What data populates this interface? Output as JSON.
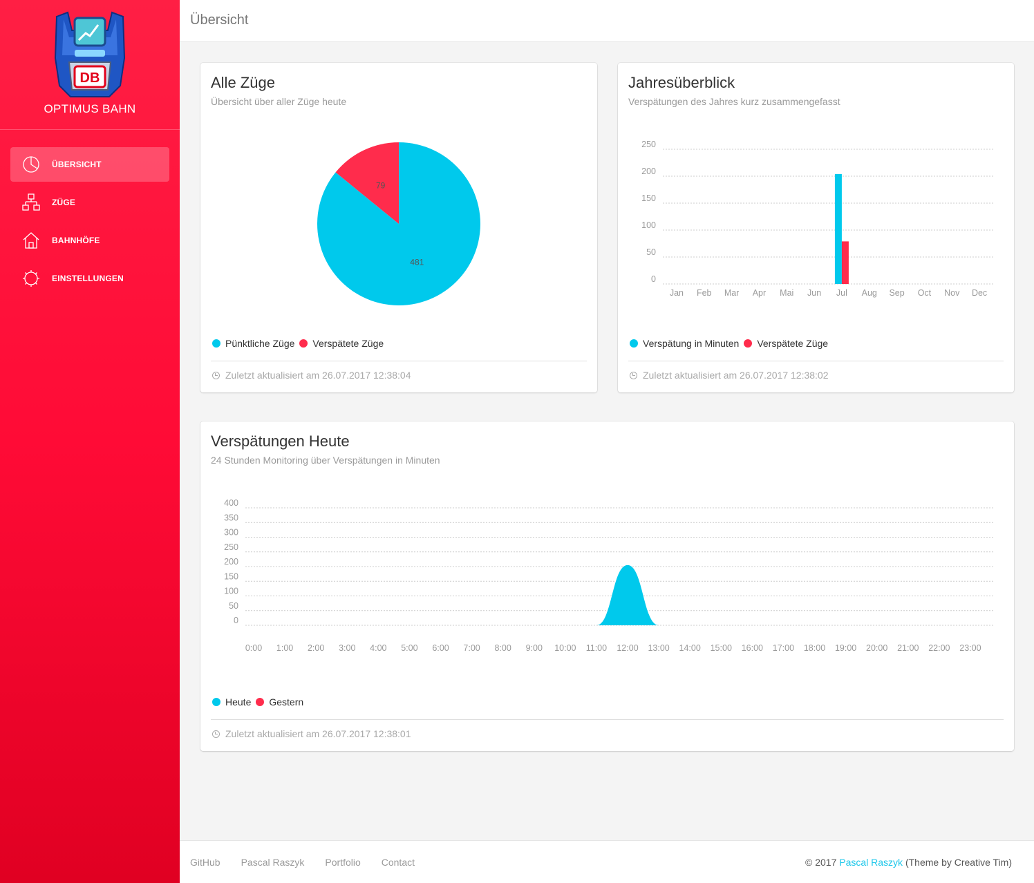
{
  "brand": {
    "name": "OPTIMUS BAHN",
    "logo_text": "DB"
  },
  "sidebar": {
    "items": [
      {
        "label": "ÜBERSICHT",
        "icon": "pie-chart-icon",
        "active": true
      },
      {
        "label": "ZÜGE",
        "icon": "hierarchy-icon",
        "active": false
      },
      {
        "label": "BAHNHÖFE",
        "icon": "home-icon",
        "active": false
      },
      {
        "label": "EINSTELLUNGEN",
        "icon": "gear-icon",
        "active": false
      }
    ]
  },
  "header": {
    "title": "Übersicht"
  },
  "cards": {
    "all_trains": {
      "title": "Alle Züge",
      "subtitle": "Übersicht über aller Züge heute",
      "legend": [
        "Pünktliche Züge",
        "Verspätete Züge"
      ],
      "updated": "Zuletzt aktualisiert am 26.07.2017 12:38:04"
    },
    "year": {
      "title": "Jahresüberblick",
      "subtitle": "Verspätungen des Jahres kurz zusammengefasst",
      "legend": [
        "Verspätung in Minuten",
        "Verspätete Züge"
      ],
      "updated": "Zuletzt aktualisiert am 26.07.2017 12:38:02"
    },
    "today": {
      "title": "Verspätungen Heute",
      "subtitle": "24 Stunden Monitoring über Verspätungen in Minuten",
      "legend": [
        "Heute",
        "Gestern"
      ],
      "updated": "Zuletzt aktualisiert am 26.07.2017 12:38:01"
    }
  },
  "colors": {
    "cyan": "#00c9ec",
    "red": "#ff2c4c"
  },
  "chart_data": [
    {
      "type": "pie",
      "categories": [
        "Pünktliche Züge",
        "Verspätete Züge"
      ],
      "values": [
        481,
        79
      ],
      "labels": [
        "481",
        "79"
      ]
    },
    {
      "type": "bar",
      "categories": [
        "Jan",
        "Feb",
        "Mar",
        "Apr",
        "Mai",
        "Jun",
        "Jul",
        "Aug",
        "Sep",
        "Oct",
        "Nov",
        "Dec"
      ],
      "series": [
        {
          "name": "Verspätung in Minuten",
          "values": [
            0,
            0,
            0,
            0,
            0,
            0,
            204,
            0,
            0,
            0,
            0,
            0
          ]
        },
        {
          "name": "Verspätete Züge",
          "values": [
            0,
            0,
            0,
            0,
            0,
            0,
            79,
            0,
            0,
            0,
            0,
            0
          ]
        }
      ],
      "ylim": [
        0,
        250
      ],
      "yticks": [
        0,
        50,
        100,
        150,
        200,
        250
      ],
      "grid": true
    },
    {
      "type": "area",
      "x": [
        "0:00",
        "1:00",
        "2:00",
        "3:00",
        "4:00",
        "5:00",
        "6:00",
        "7:00",
        "8:00",
        "9:00",
        "10:00",
        "11:00",
        "12:00",
        "13:00",
        "14:00",
        "15:00",
        "16:00",
        "17:00",
        "18:00",
        "19:00",
        "20:00",
        "21:00",
        "22:00",
        "23:00"
      ],
      "series": [
        {
          "name": "Heute",
          "values": [
            0,
            0,
            0,
            0,
            0,
            0,
            0,
            0,
            0,
            0,
            0,
            0,
            205,
            0,
            0,
            0,
            0,
            0,
            0,
            0,
            0,
            0,
            0,
            0
          ]
        },
        {
          "name": "Gestern",
          "values": [
            0,
            0,
            0,
            0,
            0,
            0,
            0,
            0,
            0,
            0,
            0,
            0,
            0,
            0,
            0,
            0,
            0,
            0,
            0,
            0,
            0,
            0,
            0,
            0
          ]
        }
      ],
      "ylim": [
        0,
        400
      ],
      "yticks": [
        0,
        50,
        100,
        150,
        200,
        250,
        300,
        350,
        400
      ],
      "grid": true
    }
  ],
  "footer": {
    "links": [
      "GitHub",
      "Pascal Raszyk",
      "Portfolio",
      "Contact"
    ],
    "copyright_prefix": "© 2017",
    "copyright_author": "Pascal Raszyk",
    "copyright_suffix": "(Theme by Creative Tim)"
  }
}
